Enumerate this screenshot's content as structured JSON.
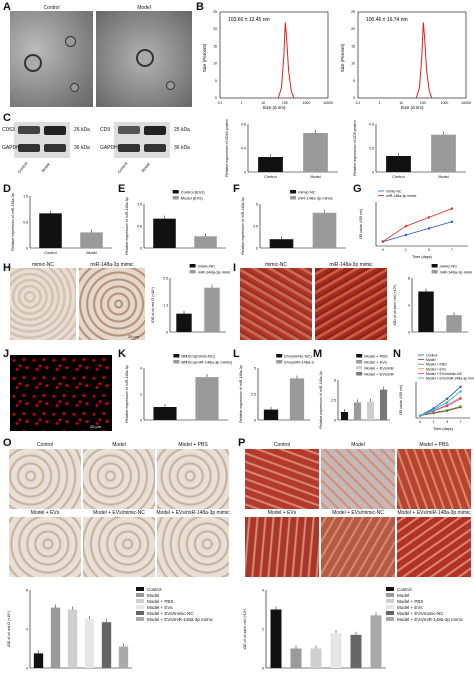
{
  "colors": {
    "black": "#111111",
    "grey": "#9a9a9a",
    "red": "#e02020",
    "blue": "#1f4fd6",
    "green": "#2aa02a",
    "orange": "#f08a1c",
    "magenta": "#d42ed4",
    "cyan": "#19b8c8",
    "dkgrey": "#555555"
  },
  "panels": [
    "A",
    "B",
    "C",
    "D",
    "E",
    "F",
    "G",
    "H",
    "I",
    "J",
    "K",
    "L",
    "M",
    "N",
    "O",
    "P"
  ],
  "A": {
    "labels": [
      "Control",
      "Model"
    ]
  },
  "B": {
    "values": [
      "103.60 ± 12.45 nm",
      "100.46 ± 16.74 nm"
    ],
    "ylabel": "Size (Percent)",
    "xlabel": "Size (d.nm)",
    "yticks": [
      "0",
      "5",
      "10",
      "15",
      "20",
      "25"
    ],
    "xticks": [
      "0.1",
      "1",
      "10",
      "100",
      "1000",
      "10000"
    ]
  },
  "C": {
    "blots": [
      {
        "marker": "CD63",
        "kda": "26 kDa"
      },
      {
        "marker": "CD9",
        "kda": "25 kDa"
      }
    ],
    "gapdh": "GAPDH",
    "gapdh_kda": "36 kDa",
    "lanes": [
      "Control",
      "Model"
    ],
    "ylabels": [
      "Relative expression of CD63 protein",
      "Relative expression of CD9 protein"
    ]
  },
  "D": {
    "ylabel": "Relative expression of miR-148a-3p",
    "categories": [
      "Control",
      "Model"
    ]
  },
  "E": {
    "ylabel": "Relative expression of miR-148a-3p",
    "legend": [
      "Control (EVs)",
      "Model (EVs)"
    ]
  },
  "F": {
    "ylabel": "Relative expression of miR-148a-3p",
    "legend": [
      "mimic-NC",
      "miR-148a-3p mimic"
    ]
  },
  "G": {
    "ylabel": "OD value (450 nm)",
    "xlabel": "Time (days)",
    "legend": [
      "mimic-NC",
      "miR-148a-3p mimic"
    ],
    "xticks": [
      "0",
      "1",
      "3",
      "7"
    ]
  },
  "H": {
    "labels": [
      "mimic-NC",
      "miR-148a-3p mimic"
    ],
    "scale": "25 μm",
    "ylabel": "IOD of oil red O (×10⁴)",
    "legend": [
      "mimic-NC",
      "miR-148a-3p mimic"
    ]
  },
  "I": {
    "labels": [
      "mimic-NC",
      "miR-148a-3p mimic"
    ],
    "ylabel": "IOD of oil zarin red (×10⁴)",
    "legend": [
      "mimic-NC",
      "miR-148a-3p mimic"
    ]
  },
  "J": {
    "scale": "25 μm"
  },
  "K": {
    "ylabel": "Relative expression of miR-148a-3p",
    "legend": [
      "BMSCs(mimic-NC)",
      "BMSCs(miR-148a-3p mimic)"
    ]
  },
  "L": {
    "ylabel": "Relative expression of miR-148a-3p",
    "legend": [
      "EVs(mimic-NC)",
      "EVs(miR-148a-3p mimic)"
    ]
  },
  "M": {
    "ylabel": "Relative expression of miR-148a-3p",
    "legend": [
      "Model + PBS",
      "Model + EVs",
      "Model + EVs/mimic-NC",
      "Model + EVs/miR-148a-3p mimic"
    ]
  },
  "N": {
    "ylabel": "OD value (450 nm)",
    "xlabel": "Time (days)",
    "xticks": [
      "0",
      "1",
      "3",
      "7"
    ],
    "legend": [
      "Control",
      "Model",
      "Model + PBS",
      "Model + EVs",
      "Model + EVs/mimic-NC",
      "Model + EVs/miR-148a-3p mimic"
    ]
  },
  "O": {
    "labels": [
      "Control",
      "Model",
      "Model + PBS",
      "Model + EVs",
      "Model + EVs/mimic-NC",
      "Model + EVs/miR-148a-3p mimic"
    ],
    "scale": "25 μm",
    "ylabel": "IOD of oil red O (×10⁴)"
  },
  "P": {
    "labels": [
      "Control",
      "Model",
      "Model + PBS",
      "Model + EVs",
      "Model + EVs/mimic-NC",
      "Model + EVs/miR-148a-3p mimic"
    ],
    "scale": "25 μm",
    "ylabel": "IOD of oil zarin red (×10⁴)"
  },
  "group_legend": [
    "Control",
    "Model",
    "Model + PBS",
    "Model + EVs",
    "Model + EVs/mimic-NC",
    "Model + EVs/miR-148a-3p mimic"
  ],
  "chart_data": [
    {
      "panel": "B1",
      "type": "line",
      "x": [
        50,
        70,
        90,
        105,
        120,
        150,
        200,
        260
      ],
      "y": [
        0,
        3,
        12,
        22,
        18,
        8,
        2,
        0
      ]
    },
    {
      "panel": "B2",
      "type": "line",
      "x": [
        50,
        70,
        90,
        105,
        120,
        150,
        200,
        260
      ],
      "y": [
        0,
        3,
        12,
        22,
        18,
        8,
        2,
        0
      ]
    },
    {
      "panel": "C1",
      "type": "bar",
      "categories": [
        "Control",
        "Model"
      ],
      "values": [
        0.25,
        0.65
      ],
      "ylim": [
        0,
        0.8
      ]
    },
    {
      "panel": "C2",
      "type": "bar",
      "categories": [
        "Control",
        "Model"
      ],
      "values": [
        0.3,
        0.7
      ],
      "ylim": [
        0,
        0.9
      ]
    },
    {
      "panel": "D",
      "type": "bar",
      "categories": [
        "Control",
        "Model"
      ],
      "values": [
        1.0,
        0.45
      ],
      "ylim": [
        0,
        1.5
      ]
    },
    {
      "panel": "E",
      "type": "bar",
      "categories": [
        "Control (EVs)",
        "Model (EVs)"
      ],
      "values": [
        1.0,
        0.4
      ],
      "ylim": [
        0,
        1.5
      ]
    },
    {
      "panel": "F",
      "type": "bar",
      "categories": [
        "mimic-NC",
        "miR-148a-3p mimic"
      ],
      "values": [
        1.0,
        4.0
      ],
      "ylim": [
        0,
        5
      ]
    },
    {
      "panel": "G",
      "type": "line",
      "x": [
        "0",
        "1",
        "3",
        "7"
      ],
      "series": [
        {
          "name": "mimic-NC",
          "values": [
            0.1,
            0.25,
            0.4,
            0.55
          ]
        },
        {
          "name": "miR-148a-3p mimic",
          "values": [
            0.1,
            0.45,
            0.65,
            0.85
          ]
        }
      ],
      "ylim": [
        0,
        1.0
      ]
    },
    {
      "panel": "H",
      "type": "bar",
      "categories": [
        "mimic-NC",
        "miR-148a-3p mimic"
      ],
      "values": [
        0.85,
        2.05
      ],
      "ylim": [
        0,
        2.5
      ]
    },
    {
      "panel": "I",
      "type": "bar",
      "categories": [
        "mimic-NC",
        "miR-148a-3p mimic"
      ],
      "values": [
        6.0,
        2.5
      ],
      "ylim": [
        0,
        8
      ]
    },
    {
      "panel": "K",
      "type": "bar",
      "categories": [
        "BMSCs(mimic-NC)",
        "BMSCs(miR-148a-3p mimic)"
      ],
      "values": [
        1.0,
        3.3
      ],
      "ylim": [
        0,
        4
      ]
    },
    {
      "panel": "L",
      "type": "bar",
      "categories": [
        "EVs(mimic-NC)",
        "EVs(miR-148a-3p mimic)"
      ],
      "values": [
        1.0,
        4.0
      ],
      "ylim": [
        0,
        5
      ]
    },
    {
      "panel": "M",
      "type": "bar",
      "categories": [
        "Model + PBS",
        "Model + EVs",
        "Model + EVs/mimic-NC",
        "Model + EVs/miR-148a-3p mimic"
      ],
      "values": [
        1.0,
        2.2,
        2.3,
        3.8
      ],
      "ylim": [
        0,
        5
      ]
    },
    {
      "panel": "N",
      "type": "line",
      "x": [
        "0",
        "1",
        "3",
        "7"
      ],
      "series": [
        {
          "name": "Control",
          "values": [
            0.1,
            0.4,
            0.8,
            1.3
          ]
        },
        {
          "name": "Model",
          "values": [
            0.1,
            0.2,
            0.3,
            0.45
          ]
        },
        {
          "name": "Model + PBS",
          "values": [
            0.1,
            0.22,
            0.32,
            0.48
          ]
        },
        {
          "name": "Model + EVs",
          "values": [
            0.1,
            0.3,
            0.55,
            0.85
          ]
        },
        {
          "name": "Model + EVs/mimic-NC",
          "values": [
            0.1,
            0.3,
            0.5,
            0.8
          ]
        },
        {
          "name": "Model + EVs/miR-148a-3p mimic",
          "values": [
            0.1,
            0.35,
            0.65,
            1.1
          ]
        }
      ],
      "ylim": [
        0,
        1.5
      ]
    },
    {
      "panel": "O",
      "type": "bar",
      "categories": [
        "Control",
        "Model",
        "Model + PBS",
        "Model + EVs",
        "Model + EVs/mimic-NC",
        "Model + EVs/miR-148a-3p mimic"
      ],
      "values": [
        1.5,
        6.2,
        6.0,
        5.0,
        4.7,
        2.2
      ],
      "ylim": [
        0,
        8
      ]
    },
    {
      "panel": "P",
      "type": "bar",
      "categories": [
        "Control",
        "Model",
        "Model + PBS",
        "Model + EVs",
        "Model + EVs/mimic-NC",
        "Model + EVs/miR-148a-3p mimic"
      ],
      "values": [
        3.0,
        1.0,
        1.0,
        1.8,
        1.7,
        2.7
      ],
      "ylim": [
        0,
        4
      ]
    }
  ]
}
